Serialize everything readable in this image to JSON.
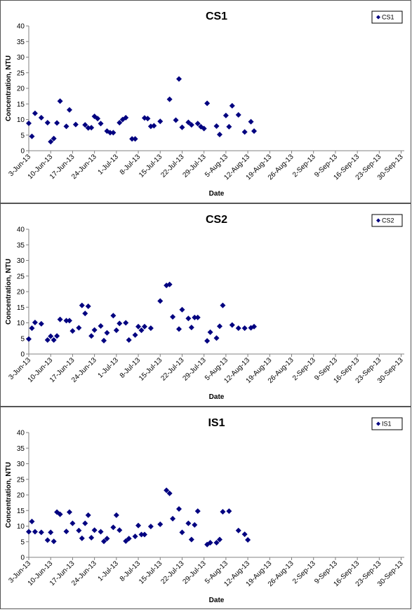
{
  "chart_data": [
    {
      "type": "scatter",
      "title": "CS1",
      "xlabel": "Date",
      "ylabel": "Concentration, NTU",
      "ylim": [
        0,
        40
      ],
      "yticks": [
        "0",
        "5",
        "10",
        "15",
        "20",
        "25",
        "30",
        "35",
        "40"
      ],
      "xlim": [
        "2013-06-03",
        "2013-10-01"
      ],
      "xticks": [
        "3-Jun-13",
        "10-Jun-13",
        "17-Jun-13",
        "24-Jun-13",
        "1-Jul-13",
        "8-Jul-13",
        "15-Jul-13",
        "22-Jul-13",
        "29-Jul-13",
        "5-Aug-13",
        "12-Aug-13",
        "19-Aug-13",
        "26-Aug-13",
        "2-Sep-13",
        "9-Sep-13",
        "16-Sep-13",
        "23-Sep-13",
        "30-Sep-13"
      ],
      "grid": false,
      "legend_position": "top-right",
      "marker_color": "#000080",
      "series": [
        {
          "name": "CS1",
          "points": [
            [
              "2013-06-03",
              8.8
            ],
            [
              "2013-06-04",
              4.6
            ],
            [
              "2013-06-05",
              12.0
            ],
            [
              "2013-06-07",
              10.6
            ],
            [
              "2013-06-09",
              9.0
            ],
            [
              "2013-06-10",
              2.9
            ],
            [
              "2013-06-11",
              3.9
            ],
            [
              "2013-06-12",
              8.9
            ],
            [
              "2013-06-13",
              15.9
            ],
            [
              "2013-06-15",
              7.8
            ],
            [
              "2013-06-16",
              13.1
            ],
            [
              "2013-06-18",
              8.4
            ],
            [
              "2013-06-21",
              8.3
            ],
            [
              "2013-06-22",
              7.3
            ],
            [
              "2013-06-23",
              7.4
            ],
            [
              "2013-06-24",
              11.0
            ],
            [
              "2013-06-25",
              10.3
            ],
            [
              "2013-06-26",
              8.7
            ],
            [
              "2013-06-28",
              6.3
            ],
            [
              "2013-06-29",
              5.8
            ],
            [
              "2013-06-30",
              5.8
            ],
            [
              "2013-07-02",
              9.0
            ],
            [
              "2013-07-03",
              10.0
            ],
            [
              "2013-07-04",
              10.6
            ],
            [
              "2013-07-06",
              3.8
            ],
            [
              "2013-07-07",
              3.8
            ],
            [
              "2013-07-10",
              10.5
            ],
            [
              "2013-07-11",
              10.3
            ],
            [
              "2013-07-12",
              7.8
            ],
            [
              "2013-07-13",
              8.0
            ],
            [
              "2013-07-15",
              9.4
            ],
            [
              "2013-07-18",
              16.5
            ],
            [
              "2013-07-20",
              9.8
            ],
            [
              "2013-07-21",
              23.0
            ],
            [
              "2013-07-22",
              7.5
            ],
            [
              "2013-07-24",
              9.1
            ],
            [
              "2013-07-25",
              8.3
            ],
            [
              "2013-07-27",
              8.7
            ],
            [
              "2013-07-28",
              7.7
            ],
            [
              "2013-07-29",
              7.1
            ],
            [
              "2013-07-30",
              15.2
            ],
            [
              "2013-08-02",
              7.9
            ],
            [
              "2013-08-03",
              5.2
            ],
            [
              "2013-08-05",
              11.3
            ],
            [
              "2013-08-06",
              7.7
            ],
            [
              "2013-08-07",
              14.4
            ],
            [
              "2013-08-09",
              11.5
            ],
            [
              "2013-08-11",
              6.0
            ],
            [
              "2013-08-13",
              9.3
            ],
            [
              "2013-08-14",
              6.3
            ]
          ]
        }
      ]
    },
    {
      "type": "scatter",
      "title": "CS2",
      "xlabel": "Date",
      "ylabel": "Concentration, NTU",
      "ylim": [
        0,
        40
      ],
      "yticks": [
        "0",
        "5",
        "10",
        "15",
        "20",
        "25",
        "30",
        "35",
        "40"
      ],
      "xlim": [
        "2013-06-03",
        "2013-10-01"
      ],
      "xticks": [
        "3-Jun-13",
        "10-Jun-13",
        "17-Jun-13",
        "24-Jun-13",
        "1-Jul-13",
        "8-Jul-13",
        "15-Jul-13",
        "22-Jul-13",
        "29-Jul-13",
        "5-Aug-13",
        "12-Aug-13",
        "19-Aug-13",
        "26-Aug-13",
        "2-Sep-13",
        "9-Sep-13",
        "16-Sep-13",
        "23-Sep-13",
        "30-Sep-13"
      ],
      "grid": false,
      "legend_position": "top-right",
      "marker_color": "#000080",
      "series": [
        {
          "name": "CS2",
          "points": [
            [
              "2013-06-03",
              4.8
            ],
            [
              "2013-06-04",
              8.3
            ],
            [
              "2013-06-05",
              10.1
            ],
            [
              "2013-06-07",
              9.7
            ],
            [
              "2013-06-09",
              4.5
            ],
            [
              "2013-06-10",
              5.7
            ],
            [
              "2013-06-11",
              4.5
            ],
            [
              "2013-06-12",
              5.8
            ],
            [
              "2013-06-13",
              11.1
            ],
            [
              "2013-06-15",
              10.7
            ],
            [
              "2013-06-16",
              10.7
            ],
            [
              "2013-06-17",
              7.4
            ],
            [
              "2013-06-19",
              8.4
            ],
            [
              "2013-06-20",
              15.6
            ],
            [
              "2013-06-21",
              13.0
            ],
            [
              "2013-06-22",
              15.3
            ],
            [
              "2013-06-23",
              5.8
            ],
            [
              "2013-06-24",
              7.7
            ],
            [
              "2013-06-26",
              9.0
            ],
            [
              "2013-06-27",
              4.3
            ],
            [
              "2013-06-28",
              6.8
            ],
            [
              "2013-06-30",
              12.3
            ],
            [
              "2013-07-01",
              7.6
            ],
            [
              "2013-07-02",
              9.8
            ],
            [
              "2013-07-04",
              10.0
            ],
            [
              "2013-07-05",
              4.5
            ],
            [
              "2013-07-07",
              6.1
            ],
            [
              "2013-07-08",
              8.8
            ],
            [
              "2013-07-09",
              7.6
            ],
            [
              "2013-07-10",
              8.8
            ],
            [
              "2013-07-12",
              8.3
            ],
            [
              "2013-07-15",
              17.0
            ],
            [
              "2013-07-17",
              22.0
            ],
            [
              "2013-07-18",
              22.3
            ],
            [
              "2013-07-19",
              11.9
            ],
            [
              "2013-07-21",
              8.0
            ],
            [
              "2013-07-22",
              14.2
            ],
            [
              "2013-07-24",
              11.4
            ],
            [
              "2013-07-25",
              8.5
            ],
            [
              "2013-07-26",
              11.7
            ],
            [
              "2013-07-27",
              11.7
            ],
            [
              "2013-07-30",
              4.2
            ],
            [
              "2013-07-31",
              7.0
            ],
            [
              "2013-08-02",
              5.1
            ],
            [
              "2013-08-03",
              8.9
            ],
            [
              "2013-08-04",
              15.6
            ],
            [
              "2013-08-07",
              9.3
            ],
            [
              "2013-08-09",
              8.3
            ],
            [
              "2013-08-11",
              8.3
            ],
            [
              "2013-08-13",
              8.4
            ],
            [
              "2013-08-14",
              8.8
            ]
          ]
        }
      ]
    },
    {
      "type": "scatter",
      "title": "IS1",
      "xlabel": "Date",
      "ylabel": "Concentration, NTU",
      "ylim": [
        0,
        40
      ],
      "yticks": [
        "0",
        "5",
        "10",
        "15",
        "20",
        "25",
        "30",
        "35",
        "40"
      ],
      "xlim": [
        "2013-06-03",
        "2013-10-01"
      ],
      "xticks": [
        "3-Jun-13",
        "10-Jun-13",
        "17-Jun-13",
        "24-Jun-13",
        "1-Jul-13",
        "8-Jul-13",
        "15-Jul-13",
        "22-Jul-13",
        "29-Jul-13",
        "5-Aug-13",
        "12-Aug-13",
        "19-Aug-13",
        "26-Aug-13",
        "2-Sep-13",
        "9-Sep-13",
        "16-Sep-13",
        "23-Sep-13",
        "30-Sep-13"
      ],
      "grid": false,
      "legend_position": "top-right",
      "marker_color": "#000080",
      "series": [
        {
          "name": "IS1",
          "points": [
            [
              "2013-06-03",
              8.2
            ],
            [
              "2013-06-04",
              11.5
            ],
            [
              "2013-06-05",
              8.2
            ],
            [
              "2013-06-07",
              8.0
            ],
            [
              "2013-06-09",
              5.5
            ],
            [
              "2013-06-10",
              8.0
            ],
            [
              "2013-06-11",
              5.1
            ],
            [
              "2013-06-12",
              14.5
            ],
            [
              "2013-06-13",
              13.8
            ],
            [
              "2013-06-15",
              8.3
            ],
            [
              "2013-06-16",
              14.5
            ],
            [
              "2013-06-17",
              10.9
            ],
            [
              "2013-06-19",
              8.6
            ],
            [
              "2013-06-20",
              6.1
            ],
            [
              "2013-06-21",
              10.9
            ],
            [
              "2013-06-22",
              13.5
            ],
            [
              "2013-06-23",
              6.3
            ],
            [
              "2013-06-24",
              8.7
            ],
            [
              "2013-06-26",
              8.2
            ],
            [
              "2013-06-27",
              5.1
            ],
            [
              "2013-06-28",
              6.0
            ],
            [
              "2013-06-30",
              9.6
            ],
            [
              "2013-07-01",
              13.5
            ],
            [
              "2013-07-02",
              8.7
            ],
            [
              "2013-07-04",
              5.2
            ],
            [
              "2013-07-05",
              6.0
            ],
            [
              "2013-07-07",
              6.7
            ],
            [
              "2013-07-08",
              10.2
            ],
            [
              "2013-07-09",
              7.3
            ],
            [
              "2013-07-10",
              7.3
            ],
            [
              "2013-07-12",
              9.9
            ],
            [
              "2013-07-15",
              10.6
            ],
            [
              "2013-07-17",
              21.5
            ],
            [
              "2013-07-18",
              20.5
            ],
            [
              "2013-07-19",
              12.4
            ],
            [
              "2013-07-21",
              15.5
            ],
            [
              "2013-07-22",
              8.0
            ],
            [
              "2013-07-24",
              10.9
            ],
            [
              "2013-07-25",
              5.7
            ],
            [
              "2013-07-26",
              10.4
            ],
            [
              "2013-07-27",
              14.8
            ],
            [
              "2013-07-30",
              4.1
            ],
            [
              "2013-07-31",
              4.7
            ],
            [
              "2013-08-02",
              4.7
            ],
            [
              "2013-08-03",
              5.7
            ],
            [
              "2013-08-04",
              14.6
            ],
            [
              "2013-08-06",
              14.8
            ],
            [
              "2013-08-09",
              8.6
            ],
            [
              "2013-08-11",
              7.4
            ],
            [
              "2013-08-12",
              5.6
            ]
          ]
        }
      ]
    }
  ]
}
